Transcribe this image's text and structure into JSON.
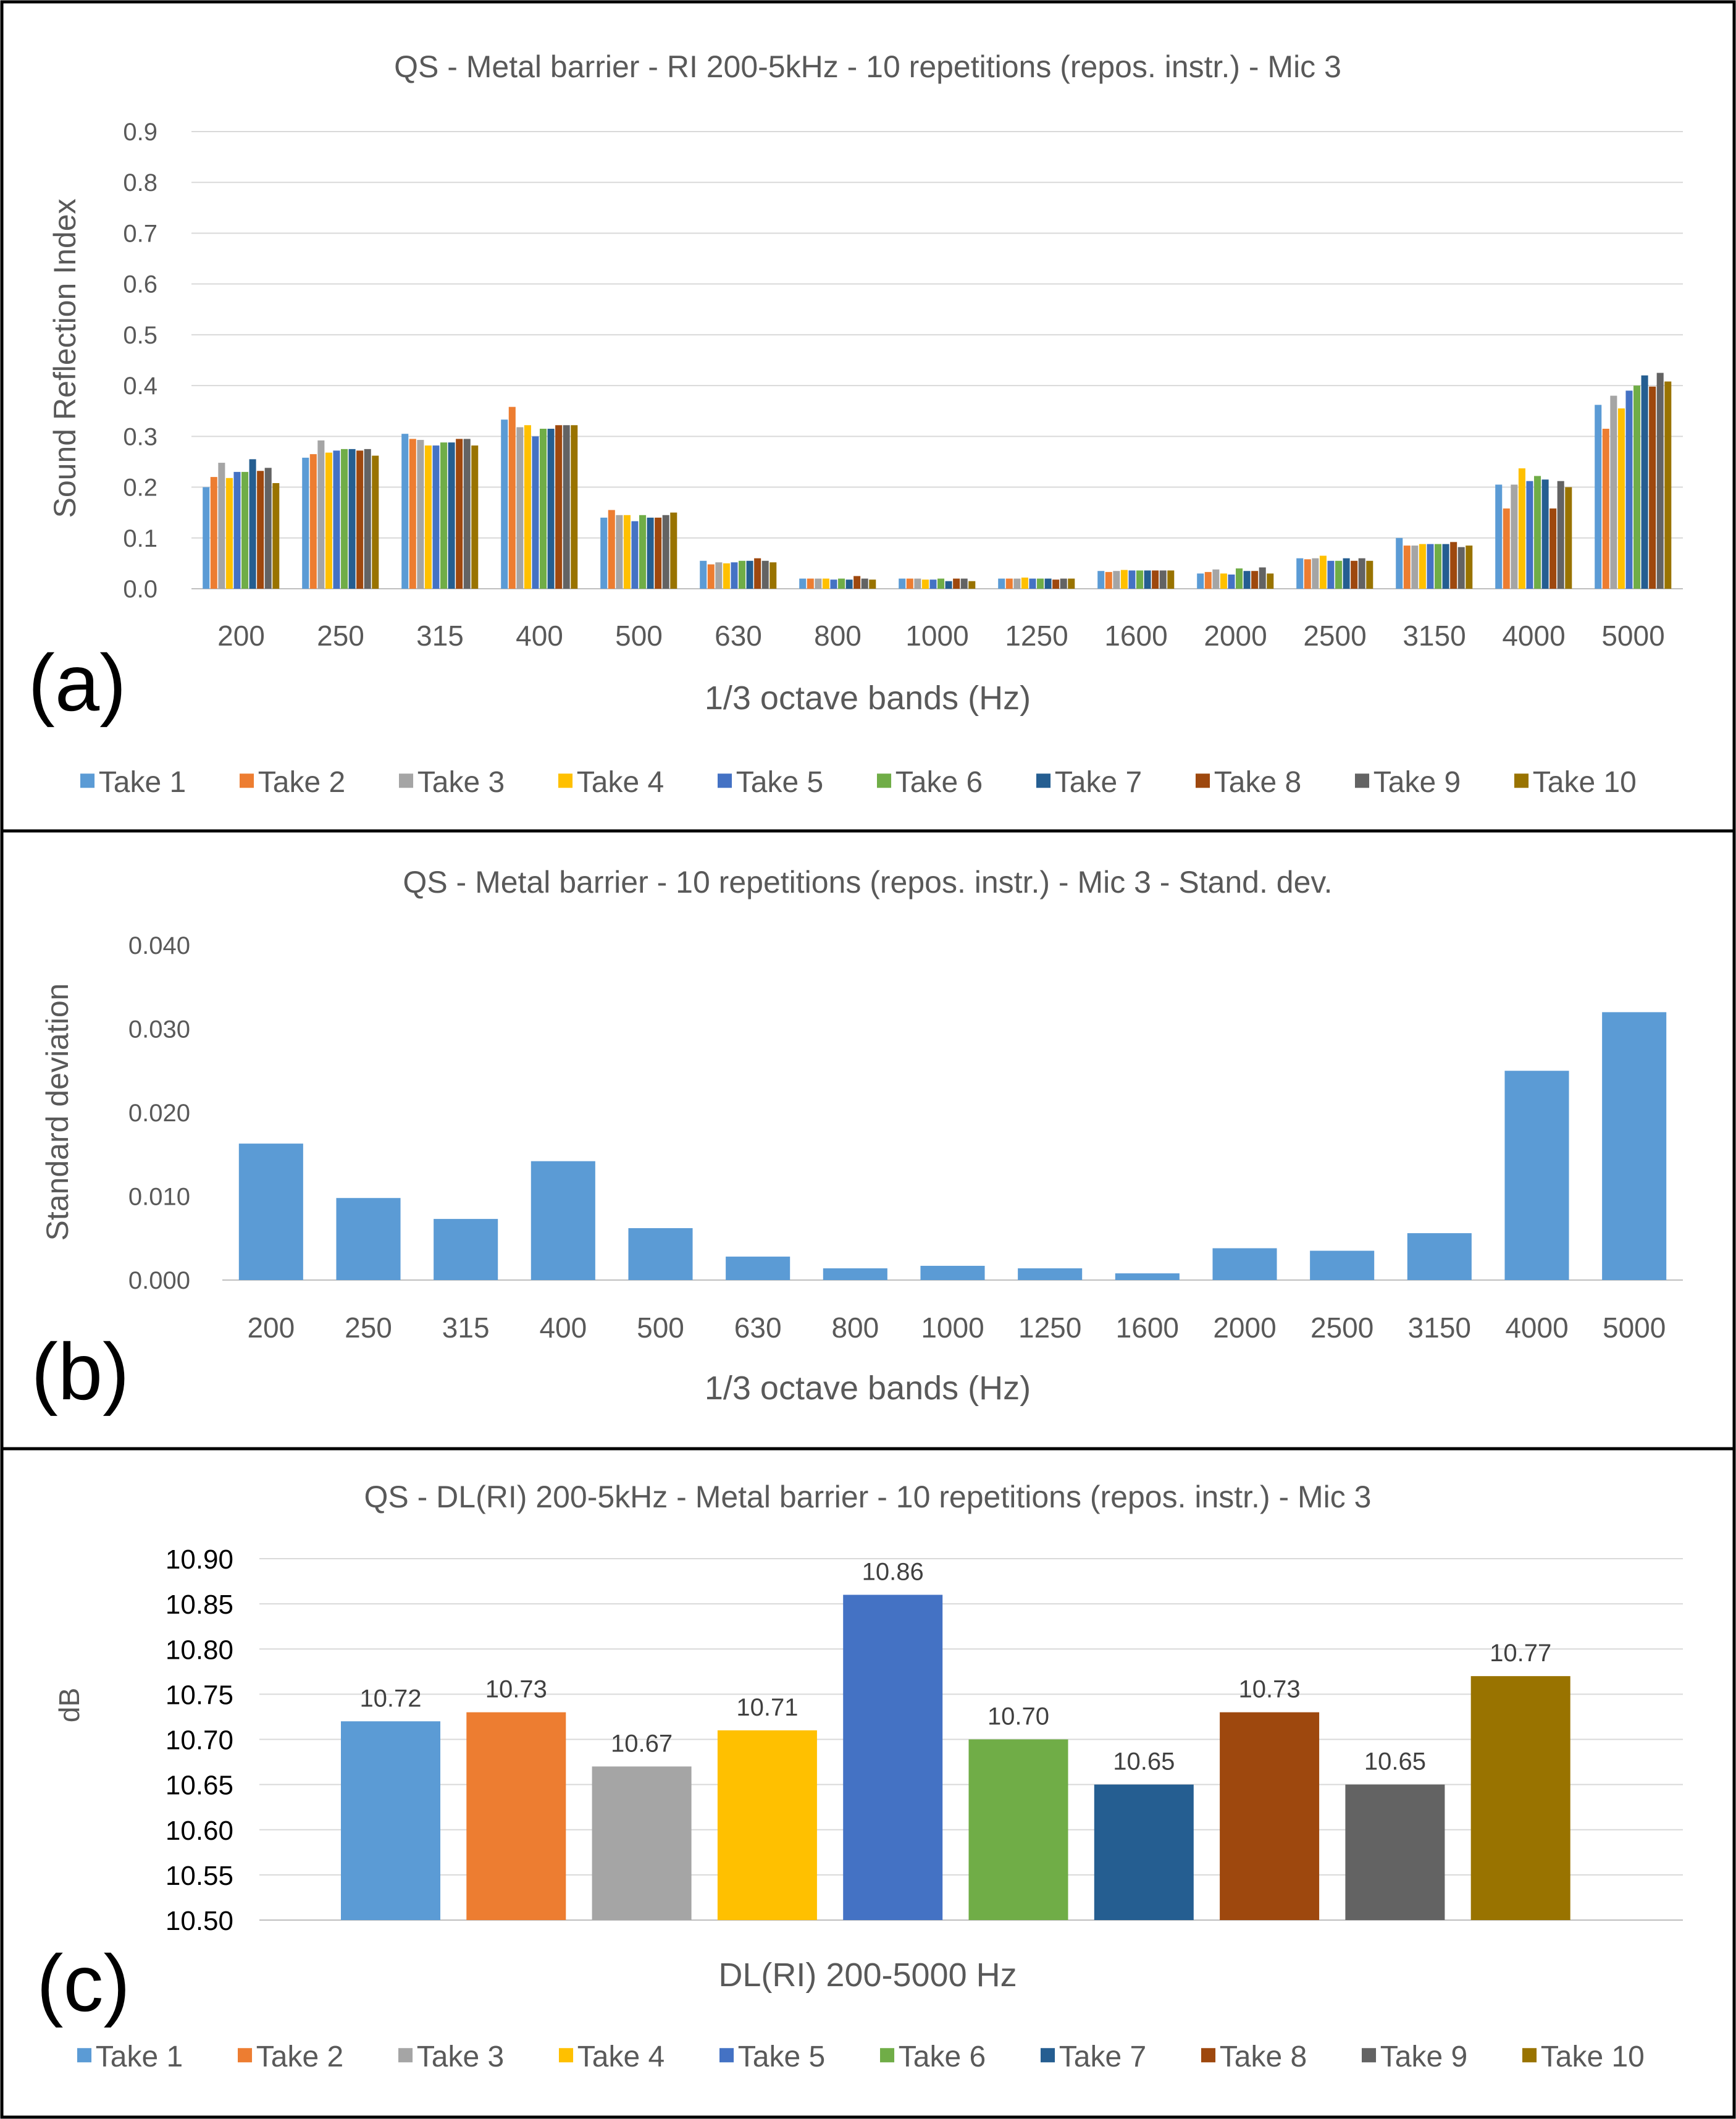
{
  "figure_colors": [
    "#5b9bd5",
    "#ed7d31",
    "#a5a5a5",
    "#ffc000",
    "#4472c4",
    "#70ad47",
    "#255e91",
    "#9e480e",
    "#636363",
    "#997300"
  ],
  "takes": [
    "Take 1",
    "Take 2",
    "Take 3",
    "Take 4",
    "Take 5",
    "Take 6",
    "Take 7",
    "Take 8",
    "Take 9",
    "Take 10"
  ],
  "chart_data": [
    {
      "panel": "(a)",
      "type": "bar",
      "title": "QS - Metal barrier - RI 200-5kHz - 10 repetitions (repos. instr.) - Mic 3",
      "xlabel": "1/3 octave bands (Hz)",
      "ylabel": "Sound Reflection Index",
      "ylim": [
        0,
        0.9
      ],
      "yticks": [
        "0.0",
        "0.1",
        "0.2",
        "0.3",
        "0.4",
        "0.5",
        "0.6",
        "0.7",
        "0.8",
        "0.9"
      ],
      "grid": true,
      "legend": "bottom",
      "categories": [
        "200",
        "250",
        "315",
        "400",
        "500",
        "630",
        "800",
        "1000",
        "1250",
        "1600",
        "2000",
        "2500",
        "3150",
        "4000",
        "5000"
      ],
      "series": [
        {
          "name": "Take 1",
          "values": [
            0.2,
            0.258,
            0.305,
            0.333,
            0.14,
            0.055,
            0.02,
            0.02,
            0.02,
            0.035,
            0.03,
            0.06,
            0.1,
            0.205,
            0.362
          ]
        },
        {
          "name": "Take 2",
          "values": [
            0.22,
            0.265,
            0.295,
            0.358,
            0.155,
            0.048,
            0.02,
            0.02,
            0.02,
            0.033,
            0.033,
            0.058,
            0.085,
            0.158,
            0.315
          ]
        },
        {
          "name": "Take 3",
          "values": [
            0.248,
            0.292,
            0.293,
            0.318,
            0.145,
            0.052,
            0.02,
            0.02,
            0.02,
            0.035,
            0.038,
            0.06,
            0.085,
            0.205,
            0.38
          ]
        },
        {
          "name": "Take 4",
          "values": [
            0.218,
            0.268,
            0.282,
            0.322,
            0.145,
            0.05,
            0.02,
            0.018,
            0.022,
            0.037,
            0.03,
            0.065,
            0.088,
            0.237,
            0.355
          ]
        },
        {
          "name": "Take 5",
          "values": [
            0.23,
            0.272,
            0.282,
            0.3,
            0.133,
            0.052,
            0.018,
            0.018,
            0.02,
            0.036,
            0.028,
            0.055,
            0.088,
            0.212,
            0.39
          ]
        },
        {
          "name": "Take 6",
          "values": [
            0.23,
            0.275,
            0.288,
            0.315,
            0.145,
            0.055,
            0.02,
            0.02,
            0.02,
            0.036,
            0.04,
            0.055,
            0.088,
            0.222,
            0.4
          ]
        },
        {
          "name": "Take 7",
          "values": [
            0.255,
            0.275,
            0.288,
            0.315,
            0.14,
            0.055,
            0.018,
            0.015,
            0.02,
            0.036,
            0.035,
            0.06,
            0.088,
            0.215,
            0.42
          ]
        },
        {
          "name": "Take 8",
          "values": [
            0.232,
            0.272,
            0.295,
            0.322,
            0.14,
            0.06,
            0.025,
            0.02,
            0.018,
            0.036,
            0.035,
            0.055,
            0.092,
            0.158,
            0.398
          ]
        },
        {
          "name": "Take 9",
          "values": [
            0.238,
            0.275,
            0.295,
            0.322,
            0.145,
            0.055,
            0.02,
            0.02,
            0.02,
            0.036,
            0.042,
            0.06,
            0.082,
            0.212,
            0.425
          ]
        },
        {
          "name": "Take 10",
          "values": [
            0.208,
            0.262,
            0.282,
            0.322,
            0.15,
            0.052,
            0.018,
            0.015,
            0.02,
            0.036,
            0.03,
            0.055,
            0.085,
            0.2,
            0.408
          ]
        }
      ]
    },
    {
      "panel": "(b)",
      "type": "bar",
      "title": "QS - Metal barrier - 10 repetitions (repos. instr.) - Mic 3 - Stand. dev.",
      "xlabel": "1/3 octave bands (Hz)",
      "ylabel": "Standard deviation",
      "ylim": [
        0,
        0.04
      ],
      "yticks": [
        "0.000",
        "0.010",
        "0.020",
        "0.030",
        "0.040"
      ],
      "grid": false,
      "categories": [
        "200",
        "250",
        "315",
        "400",
        "500",
        "630",
        "800",
        "1000",
        "1250",
        "1600",
        "2000",
        "2500",
        "3150",
        "4000",
        "5000"
      ],
      "values": [
        0.0163,
        0.0098,
        0.0073,
        0.0142,
        0.0062,
        0.0028,
        0.0014,
        0.0017,
        0.0014,
        0.0008,
        0.0038,
        0.0035,
        0.0056,
        0.025,
        0.032
      ]
    },
    {
      "panel": "(c)",
      "type": "bar",
      "title": "QS - DL(RI) 200-5kHz - Metal barrier - 10 repetitions (repos. instr.) - Mic 3",
      "xlabel": "DL(RI) 200-5000 Hz",
      "ylabel": "dB",
      "ylim": [
        10.5,
        10.9
      ],
      "yticks": [
        "10.50",
        "10.55",
        "10.60",
        "10.65",
        "10.70",
        "10.75",
        "10.80",
        "10.85",
        "10.90"
      ],
      "grid": true,
      "legend": "bottom",
      "categories": [
        "Take 1",
        "Take 2",
        "Take 3",
        "Take 4",
        "Take 5",
        "Take 6",
        "Take 7",
        "Take 8",
        "Take 9",
        "Take 10"
      ],
      "values": [
        10.72,
        10.73,
        10.67,
        10.71,
        10.86,
        10.7,
        10.65,
        10.73,
        10.65,
        10.77
      ],
      "value_labels": [
        "10.72",
        "10.73",
        "10.67",
        "10.71",
        "10.86",
        "10.70",
        "10.65",
        "10.73",
        "10.65",
        "10.77"
      ]
    }
  ]
}
